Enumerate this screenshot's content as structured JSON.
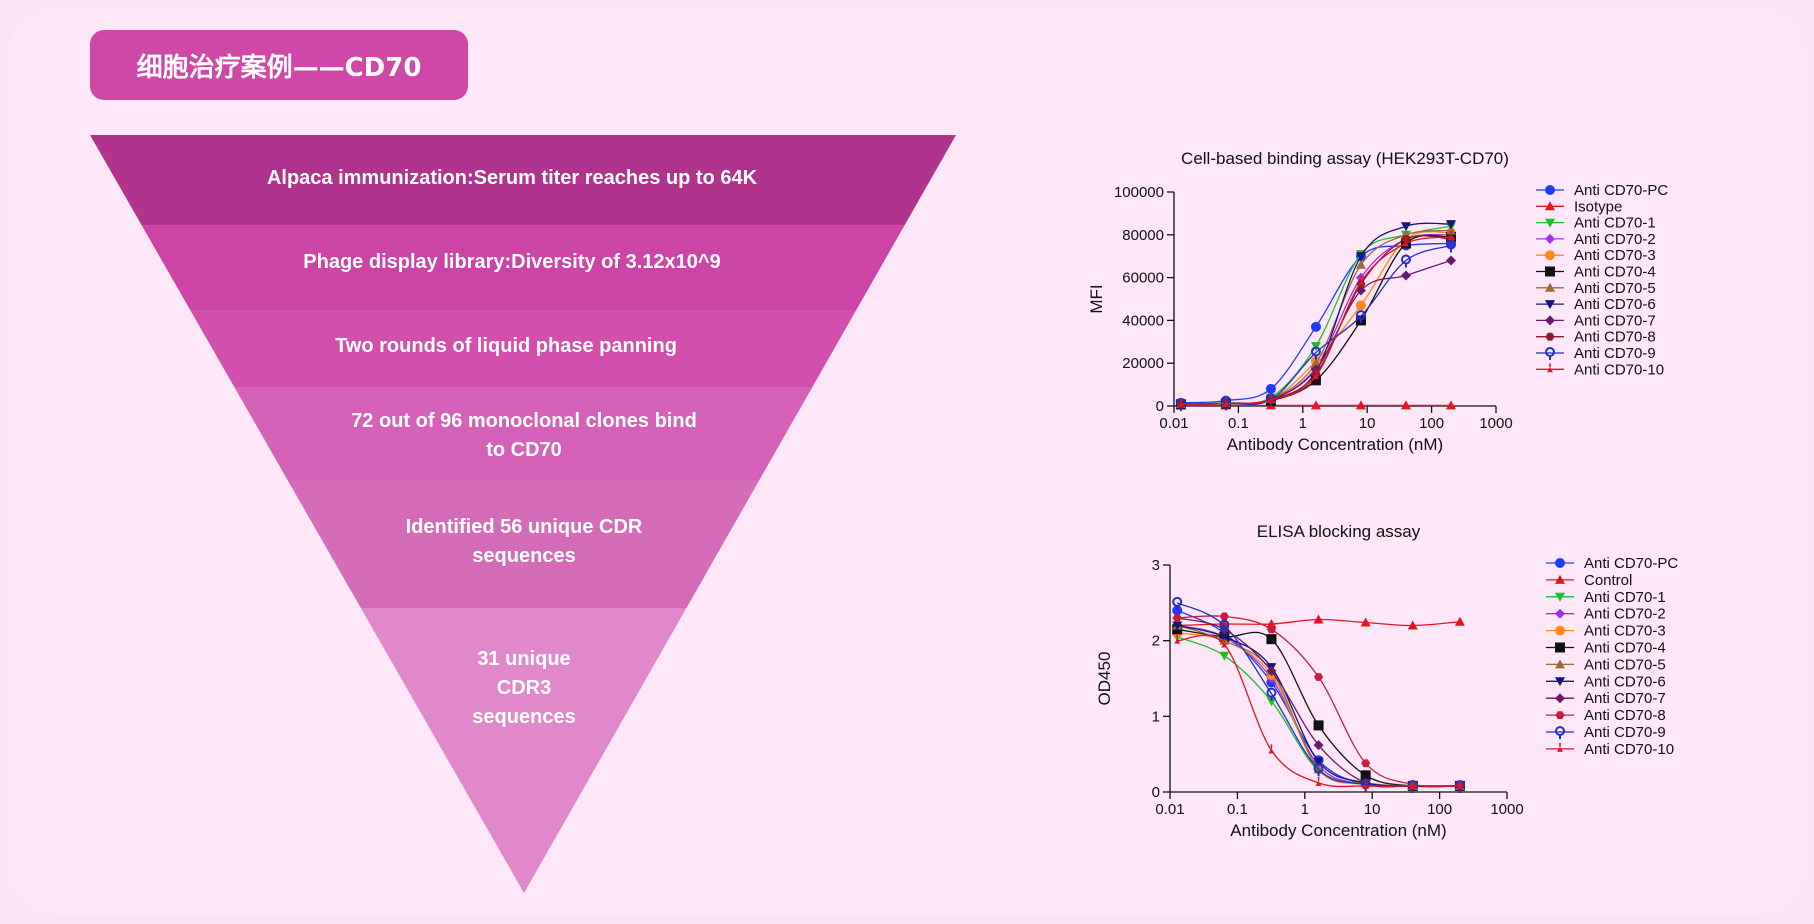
{
  "colors": {
    "background": "#fde7f8",
    "title_pill": "#cf47a7",
    "funnel_layers": [
      "#b0348e",
      "#cc44a6",
      "#d24fad",
      "#d562b8",
      "#d46cb9",
      "#e188cc"
    ]
  },
  "header": {
    "title": "细胞治疗案例——CD70"
  },
  "funnel": {
    "layers": [
      {
        "text": "Alpaca immunization:Serum titer reaches up to 64K"
      },
      {
        "text": "Phage display library:Diversity of 3.12x10^9"
      },
      {
        "text": "Two rounds of liquid phase panning"
      },
      {
        "text": "72 out of 96 monoclonal clones bind\nto CD70"
      },
      {
        "text": "Identified 56 unique CDR\nsequences"
      },
      {
        "text": "31 unique\nCDR3\nsequences"
      }
    ]
  },
  "chart_data": [
    {
      "type": "scatter",
      "title": "Cell-based binding assay (HEK293T-CD70)",
      "xlabel": "Antibody Concentration (nM)",
      "ylabel": "MFI",
      "xscale": "log",
      "xlim": [
        0.01,
        1000
      ],
      "ylim": [
        0,
        100000
      ],
      "xticks": [
        "0.01",
        "0.1",
        "1",
        "10",
        "100",
        "1000"
      ],
      "yticks": [
        "0",
        "20000",
        "40000",
        "60000",
        "80000",
        "100000"
      ],
      "legend": "right",
      "x": [
        0.0128,
        0.064,
        0.32,
        1.6,
        8,
        40,
        200
      ],
      "series": [
        {
          "name": "Anti CD70-PC",
          "color": "#1f3bff",
          "marker": "circle",
          "values": [
            1500,
            2500,
            8000,
            37000,
            70000,
            75000,
            76000
          ]
        },
        {
          "name": "Isotype",
          "color": "#e8141c",
          "marker": "triangle-up",
          "values": [
            300,
            300,
            300,
            300,
            300,
            300,
            300
          ]
        },
        {
          "name": "Anti CD70-1",
          "color": "#1fbf2a",
          "marker": "triangle-down",
          "values": [
            1000,
            1500,
            4000,
            28000,
            71000,
            80000,
            84000
          ]
        },
        {
          "name": "Anti CD70-2",
          "color": "#a033e6",
          "marker": "diamond",
          "values": [
            900,
            1300,
            3000,
            18000,
            60000,
            78000,
            80000
          ]
        },
        {
          "name": "Anti CD70-3",
          "color": "#ff8a1a",
          "marker": "circle",
          "values": [
            900,
            1200,
            3000,
            21000,
            47000,
            78000,
            81000
          ]
        },
        {
          "name": "Anti CD70-4",
          "color": "#111111",
          "marker": "square",
          "values": [
            800,
            1100,
            2500,
            12000,
            40000,
            76000,
            79000
          ]
        },
        {
          "name": "Anti CD70-5",
          "color": "#9c6b3a",
          "marker": "triangle-up",
          "values": [
            900,
            1200,
            3200,
            20000,
            66000,
            80000,
            82000
          ]
        },
        {
          "name": "Anti CD70-6",
          "color": "#15157a",
          "marker": "triangle-down",
          "values": [
            900,
            1200,
            3000,
            16000,
            70000,
            84000,
            85000
          ]
        },
        {
          "name": "Anti CD70-7",
          "color": "#6b1a66",
          "marker": "diamond",
          "values": [
            800,
            1200,
            3000,
            17000,
            54000,
            61000,
            68000
          ]
        },
        {
          "name": "Anti CD70-8",
          "color": "#8c1a2a",
          "marker": "hexagon",
          "values": [
            800,
            1100,
            2800,
            15000,
            57000,
            78000,
            78000
          ]
        },
        {
          "name": "Anti CD70-9",
          "color": "#2030c8",
          "marker": "pin",
          "values": [
            900,
            1200,
            3000,
            25000,
            42000,
            68000,
            75000
          ]
        },
        {
          "name": "Anti CD70-10",
          "color": "#e8141c",
          "marker": "tick",
          "values": [
            800,
            1100,
            2800,
            14000,
            58000,
            76000,
            79000
          ]
        }
      ]
    },
    {
      "type": "scatter",
      "title": "ELISA blocking assay",
      "xlabel": "Antibody Concentration (nM)",
      "ylabel": "OD450",
      "xscale": "log",
      "xlim": [
        0.01,
        1000
      ],
      "ylim": [
        0,
        3
      ],
      "xticks": [
        "0.01",
        "0.1",
        "1",
        "10",
        "100",
        "1000"
      ],
      "yticks": [
        "0",
        "1",
        "2",
        "3"
      ],
      "legend": "right",
      "x": [
        0.0128,
        0.064,
        0.32,
        1.6,
        8,
        40,
        200
      ],
      "series": [
        {
          "name": "Anti CD70-PC",
          "color": "#1f3bff",
          "marker": "circle",
          "values": [
            2.4,
            2.1,
            1.45,
            0.42,
            0.1,
            0.08,
            0.08
          ]
        },
        {
          "name": "Control",
          "color": "#e8141c",
          "marker": "triangle-up",
          "values": [
            2.2,
            2.22,
            2.22,
            2.28,
            2.24,
            2.2,
            2.25
          ]
        },
        {
          "name": "Anti CD70-1",
          "color": "#1fbf2a",
          "marker": "triangle-down",
          "values": [
            2.05,
            1.8,
            1.2,
            0.28,
            0.1,
            0.08,
            0.08
          ]
        },
        {
          "name": "Anti CD70-2",
          "color": "#a033e6",
          "marker": "diamond",
          "values": [
            2.2,
            2.05,
            1.5,
            0.35,
            0.1,
            0.08,
            0.08
          ]
        },
        {
          "name": "Anti CD70-3",
          "color": "#ff8a1a",
          "marker": "circle",
          "values": [
            2.1,
            2.0,
            1.55,
            0.3,
            0.1,
            0.08,
            0.08
          ]
        },
        {
          "name": "Anti CD70-4",
          "color": "#111111",
          "marker": "square",
          "values": [
            2.15,
            2.05,
            2.02,
            0.88,
            0.22,
            0.08,
            0.08
          ]
        },
        {
          "name": "Anti CD70-5",
          "color": "#9c6b3a",
          "marker": "triangle-up",
          "values": [
            2.2,
            2.0,
            1.6,
            0.3,
            0.12,
            0.08,
            0.08
          ]
        },
        {
          "name": "Anti CD70-6",
          "color": "#15157a",
          "marker": "triangle-down",
          "values": [
            2.2,
            2.05,
            1.65,
            0.4,
            0.12,
            0.08,
            0.08
          ]
        },
        {
          "name": "Anti CD70-7",
          "color": "#6b1a66",
          "marker": "diamond",
          "values": [
            2.3,
            2.15,
            1.6,
            0.62,
            0.12,
            0.08,
            0.08
          ]
        },
        {
          "name": "Anti CD70-8",
          "color": "#c81e3c",
          "marker": "hexagon",
          "values": [
            2.3,
            2.32,
            2.15,
            1.52,
            0.38,
            0.1,
            0.08
          ]
        },
        {
          "name": "Anti CD70-9",
          "color": "#2030c8",
          "marker": "pin",
          "values": [
            2.5,
            2.2,
            1.3,
            0.3,
            0.1,
            0.08,
            0.08
          ]
        },
        {
          "name": "Anti CD70-10",
          "color": "#e8141c",
          "marker": "tick",
          "values": [
            2.0,
            1.95,
            0.55,
            0.12,
            0.08,
            0.08,
            0.08
          ]
        }
      ]
    }
  ]
}
